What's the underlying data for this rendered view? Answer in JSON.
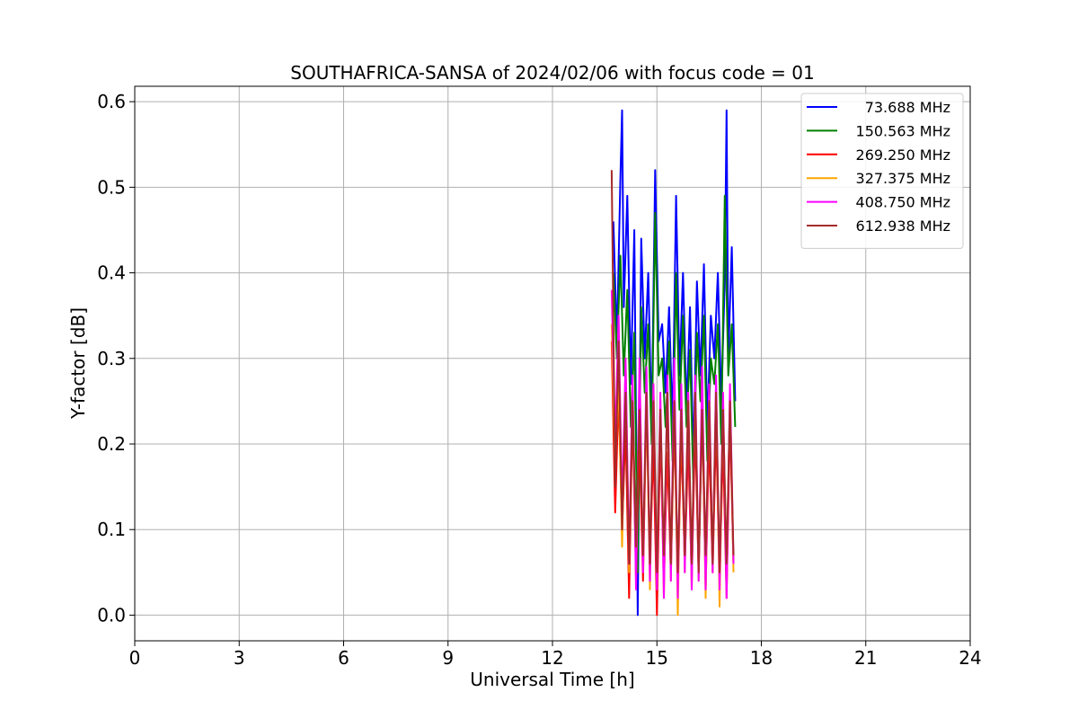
{
  "chart_data": {
    "type": "line",
    "title": "SOUTHAFRICA-SANSA of 2024/02/06 with focus code = 01",
    "xlabel": "Universal Time [h]",
    "ylabel": "Y-factor [dB]",
    "xlim": [
      0,
      24
    ],
    "ylim": [
      -0.03,
      0.618
    ],
    "x_ticks": [
      0,
      3,
      6,
      9,
      12,
      15,
      18,
      21,
      24
    ],
    "y_ticks": [
      0.0,
      0.1,
      0.2,
      0.3,
      0.4,
      0.5,
      0.6
    ],
    "x_tick_labels": [
      "0",
      "3",
      "6",
      "9",
      "12",
      "15",
      "18",
      "21",
      "24"
    ],
    "y_tick_labels": [
      "0.0",
      "0.1",
      "0.2",
      "0.3",
      "0.4",
      "0.5",
      "0.6"
    ],
    "grid": true,
    "legend_position": "top-right",
    "series": [
      {
        "name": "73.688 MHz",
        "color": "#0000ff",
        "x": [
          13.75,
          13.85,
          13.95,
          14.0,
          14.05,
          14.15,
          14.25,
          14.35,
          14.45,
          14.55,
          14.65,
          14.75,
          14.85,
          14.95,
          15.05,
          15.15,
          15.25,
          15.35,
          15.45,
          15.55,
          15.65,
          15.75,
          15.85,
          15.95,
          16.05,
          16.15,
          16.25,
          16.35,
          16.45,
          16.55,
          16.65,
          16.75,
          16.85,
          16.95,
          17.0,
          17.05,
          17.15,
          17.25
        ],
        "y": [
          0.46,
          0.32,
          0.51,
          0.59,
          0.36,
          0.49,
          0.27,
          0.45,
          0.0,
          0.44,
          0.3,
          0.4,
          0.22,
          0.52,
          0.32,
          0.34,
          0.26,
          0.36,
          0.22,
          0.49,
          0.28,
          0.4,
          0.24,
          0.36,
          0.18,
          0.39,
          0.28,
          0.41,
          0.22,
          0.35,
          0.3,
          0.4,
          0.25,
          0.39,
          0.59,
          0.3,
          0.43,
          0.25
        ]
      },
      {
        "name": "150.563 MHz",
        "color": "#008000",
        "x": [
          13.75,
          13.85,
          13.95,
          14.05,
          14.15,
          14.25,
          14.35,
          14.45,
          14.55,
          14.65,
          14.75,
          14.85,
          14.95,
          15.05,
          15.15,
          15.25,
          15.35,
          15.45,
          15.55,
          15.65,
          15.75,
          15.85,
          15.95,
          16.05,
          16.15,
          16.25,
          16.35,
          16.45,
          16.55,
          16.65,
          16.75,
          16.85,
          16.95,
          17.05,
          17.15,
          17.25
        ],
        "y": [
          0.4,
          0.3,
          0.42,
          0.28,
          0.38,
          0.22,
          0.33,
          0.05,
          0.36,
          0.26,
          0.34,
          0.2,
          0.47,
          0.28,
          0.3,
          0.22,
          0.32,
          0.18,
          0.4,
          0.24,
          0.35,
          0.22,
          0.31,
          0.15,
          0.33,
          0.25,
          0.35,
          0.18,
          0.3,
          0.27,
          0.34,
          0.2,
          0.49,
          0.28,
          0.34,
          0.22
        ]
      },
      {
        "name": "269.250 MHz",
        "color": "#ff0000",
        "x": [
          13.7,
          13.8,
          13.9,
          14.0,
          14.1,
          14.2,
          14.3,
          14.4,
          14.5,
          14.6,
          14.7,
          14.8,
          14.9,
          15.0,
          15.1,
          15.2,
          15.3,
          15.4,
          15.5,
          15.6,
          15.7,
          15.8,
          15.9,
          16.0,
          16.1,
          16.2,
          16.3,
          16.4,
          16.5,
          16.6,
          16.7,
          16.8,
          16.9,
          17.0,
          17.1,
          17.2
        ],
        "y": [
          0.32,
          0.12,
          0.26,
          0.1,
          0.22,
          0.02,
          0.24,
          0.05,
          0.21,
          0.04,
          0.25,
          0.06,
          0.2,
          0.0,
          0.22,
          0.04,
          0.19,
          0.05,
          0.23,
          0.03,
          0.21,
          0.06,
          0.2,
          0.04,
          0.22,
          0.05,
          0.24,
          0.03,
          0.21,
          0.05,
          0.22,
          0.04,
          0.2,
          0.02,
          0.23,
          0.06
        ]
      },
      {
        "name": "327.375 MHz",
        "color": "#ffa500",
        "x": [
          13.7,
          13.8,
          13.9,
          14.0,
          14.1,
          14.2,
          14.3,
          14.4,
          14.5,
          14.6,
          14.7,
          14.8,
          14.9,
          15.0,
          15.1,
          15.2,
          15.3,
          15.4,
          15.5,
          15.6,
          15.7,
          15.8,
          15.9,
          16.0,
          16.1,
          16.2,
          16.3,
          16.4,
          16.5,
          16.6,
          16.7,
          16.8,
          16.9,
          17.0,
          17.1,
          17.2
        ],
        "y": [
          0.34,
          0.17,
          0.28,
          0.08,
          0.3,
          0.05,
          0.27,
          0.04,
          0.29,
          0.06,
          0.26,
          0.03,
          0.27,
          0.05,
          0.25,
          0.02,
          0.26,
          0.04,
          0.27,
          0.0,
          0.25,
          0.05,
          0.26,
          0.03,
          0.27,
          0.04,
          0.28,
          0.02,
          0.26,
          0.05,
          0.27,
          0.01,
          0.25,
          0.04,
          0.26,
          0.05
        ]
      },
      {
        "name": "408.750 MHz",
        "color": "#ff00ff",
        "x": [
          13.7,
          13.8,
          13.9,
          14.0,
          14.1,
          14.2,
          14.3,
          14.4,
          14.5,
          14.6,
          14.7,
          14.8,
          14.9,
          15.0,
          15.1,
          15.2,
          15.3,
          15.4,
          15.5,
          15.6,
          15.7,
          15.8,
          15.9,
          16.0,
          16.1,
          16.2,
          16.3,
          16.4,
          16.5,
          16.6,
          16.7,
          16.8,
          16.9,
          17.0,
          17.1,
          17.2
        ],
        "y": [
          0.38,
          0.2,
          0.35,
          0.12,
          0.3,
          0.06,
          0.28,
          0.03,
          0.3,
          0.05,
          0.29,
          0.04,
          0.27,
          0.03,
          0.26,
          0.02,
          0.28,
          0.04,
          0.3,
          0.02,
          0.27,
          0.05,
          0.26,
          0.03,
          0.28,
          0.04,
          0.29,
          0.03,
          0.27,
          0.05,
          0.28,
          0.03,
          0.26,
          0.02,
          0.27,
          0.06
        ]
      },
      {
        "name": "612.938 MHz",
        "color": "#a52a2a",
        "x": [
          13.7,
          13.8,
          13.9,
          14.0,
          14.1,
          14.2,
          14.3,
          14.4,
          14.5,
          14.6,
          14.7,
          14.8,
          14.9,
          15.0,
          15.1,
          15.2,
          15.3,
          15.4,
          15.5,
          15.6,
          15.7,
          15.8,
          15.9,
          16.0,
          16.1,
          16.2,
          16.3,
          16.4,
          16.5,
          16.6,
          16.7,
          16.8,
          16.9,
          17.0,
          17.1,
          17.2
        ],
        "y": [
          0.52,
          0.15,
          0.32,
          0.1,
          0.26,
          0.06,
          0.25,
          0.08,
          0.24,
          0.07,
          0.26,
          0.06,
          0.25,
          0.05,
          0.24,
          0.07,
          0.26,
          0.06,
          0.25,
          0.05,
          0.24,
          0.07,
          0.25,
          0.06,
          0.26,
          0.05,
          0.24,
          0.07,
          0.25,
          0.06,
          0.26,
          0.05,
          0.24,
          0.06,
          0.25,
          0.07
        ]
      }
    ]
  }
}
